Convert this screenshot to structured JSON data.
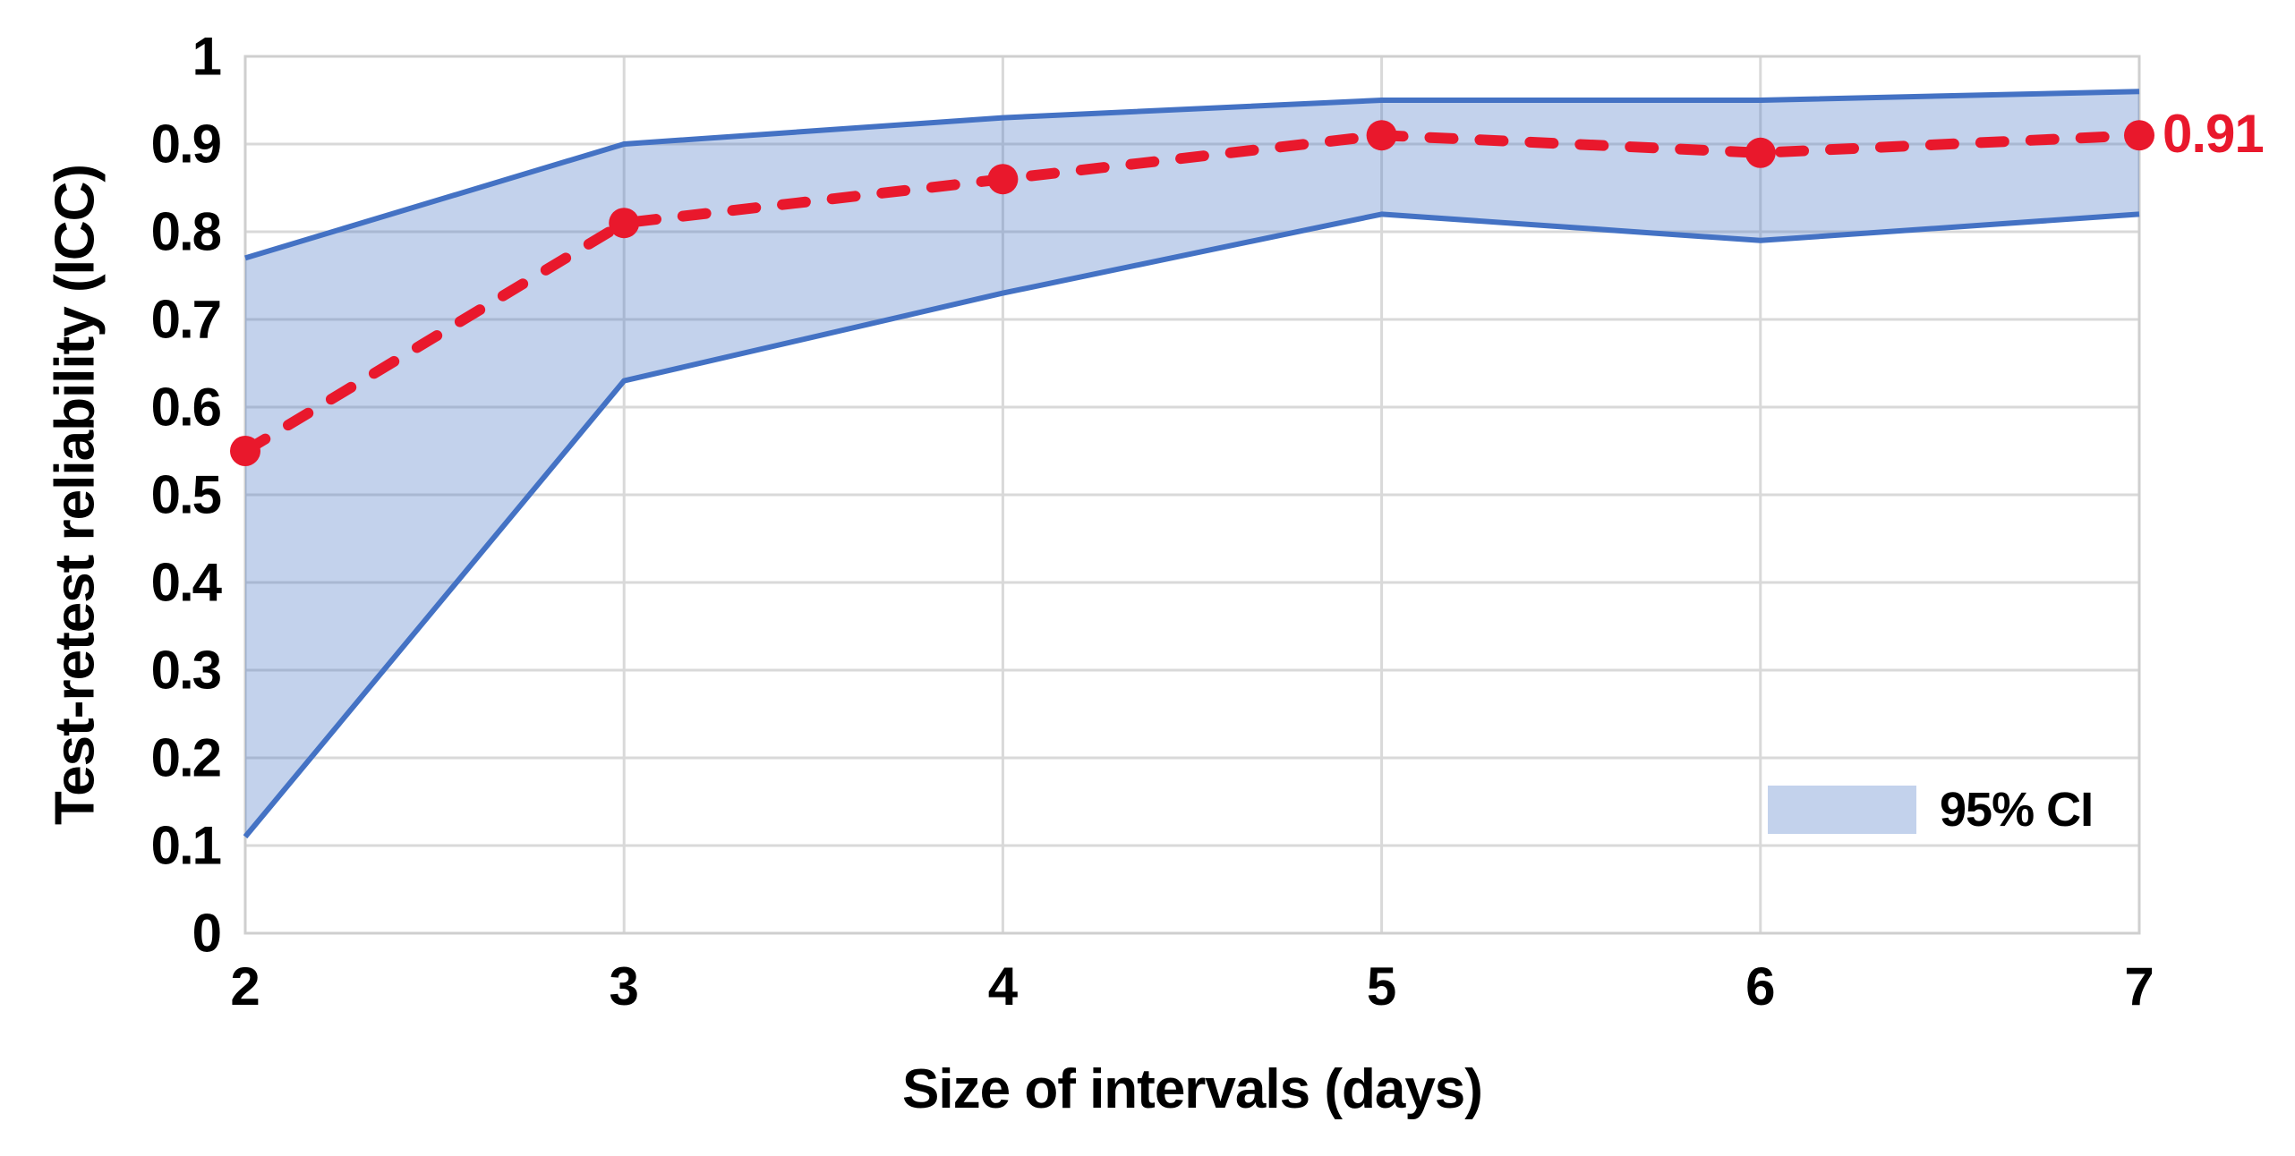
{
  "chart_data": {
    "type": "line",
    "x": [
      2,
      3,
      4,
      5,
      6,
      7
    ],
    "series": [
      {
        "name": "Test-retest reliability (ICC)",
        "style": "red-dashed-with-markers",
        "values": [
          0.55,
          0.81,
          0.86,
          0.91,
          0.89,
          0.91
        ]
      },
      {
        "name": "95% CI upper bound",
        "style": "band-edge",
        "values": [
          0.77,
          0.9,
          0.93,
          0.95,
          0.95,
          0.96
        ]
      },
      {
        "name": "95% CI lower bound",
        "style": "band-edge",
        "values": [
          0.11,
          0.63,
          0.73,
          0.82,
          0.79,
          0.82
        ]
      }
    ],
    "xlabel": "Size of intervals (days)",
    "ylabel": "Test-retest reliability (ICC)",
    "xticks": [
      "2",
      "3",
      "4",
      "5",
      "6",
      "7"
    ],
    "yticks": [
      "0",
      "0.1",
      "0.2",
      "0.3",
      "0.4",
      "0.5",
      "0.6",
      "0.7",
      "0.8",
      "0.9",
      "1"
    ],
    "ylim": [
      0,
      1
    ],
    "ytick_step": 0.1,
    "grid": true,
    "legend": {
      "label": "95% CI",
      "position": "inside-bottom-right"
    },
    "annotation": {
      "text": "0.91",
      "x": 7,
      "y": 0.91
    },
    "colors": {
      "icc_line": "#E9182C",
      "band_edge": "#4472C4",
      "band_fill": "#4472C4",
      "band_fill_opacity": 0.32,
      "grid": "#D9D9D9",
      "plot_border": "#CFCFCF",
      "tick_text": "#000000"
    }
  }
}
